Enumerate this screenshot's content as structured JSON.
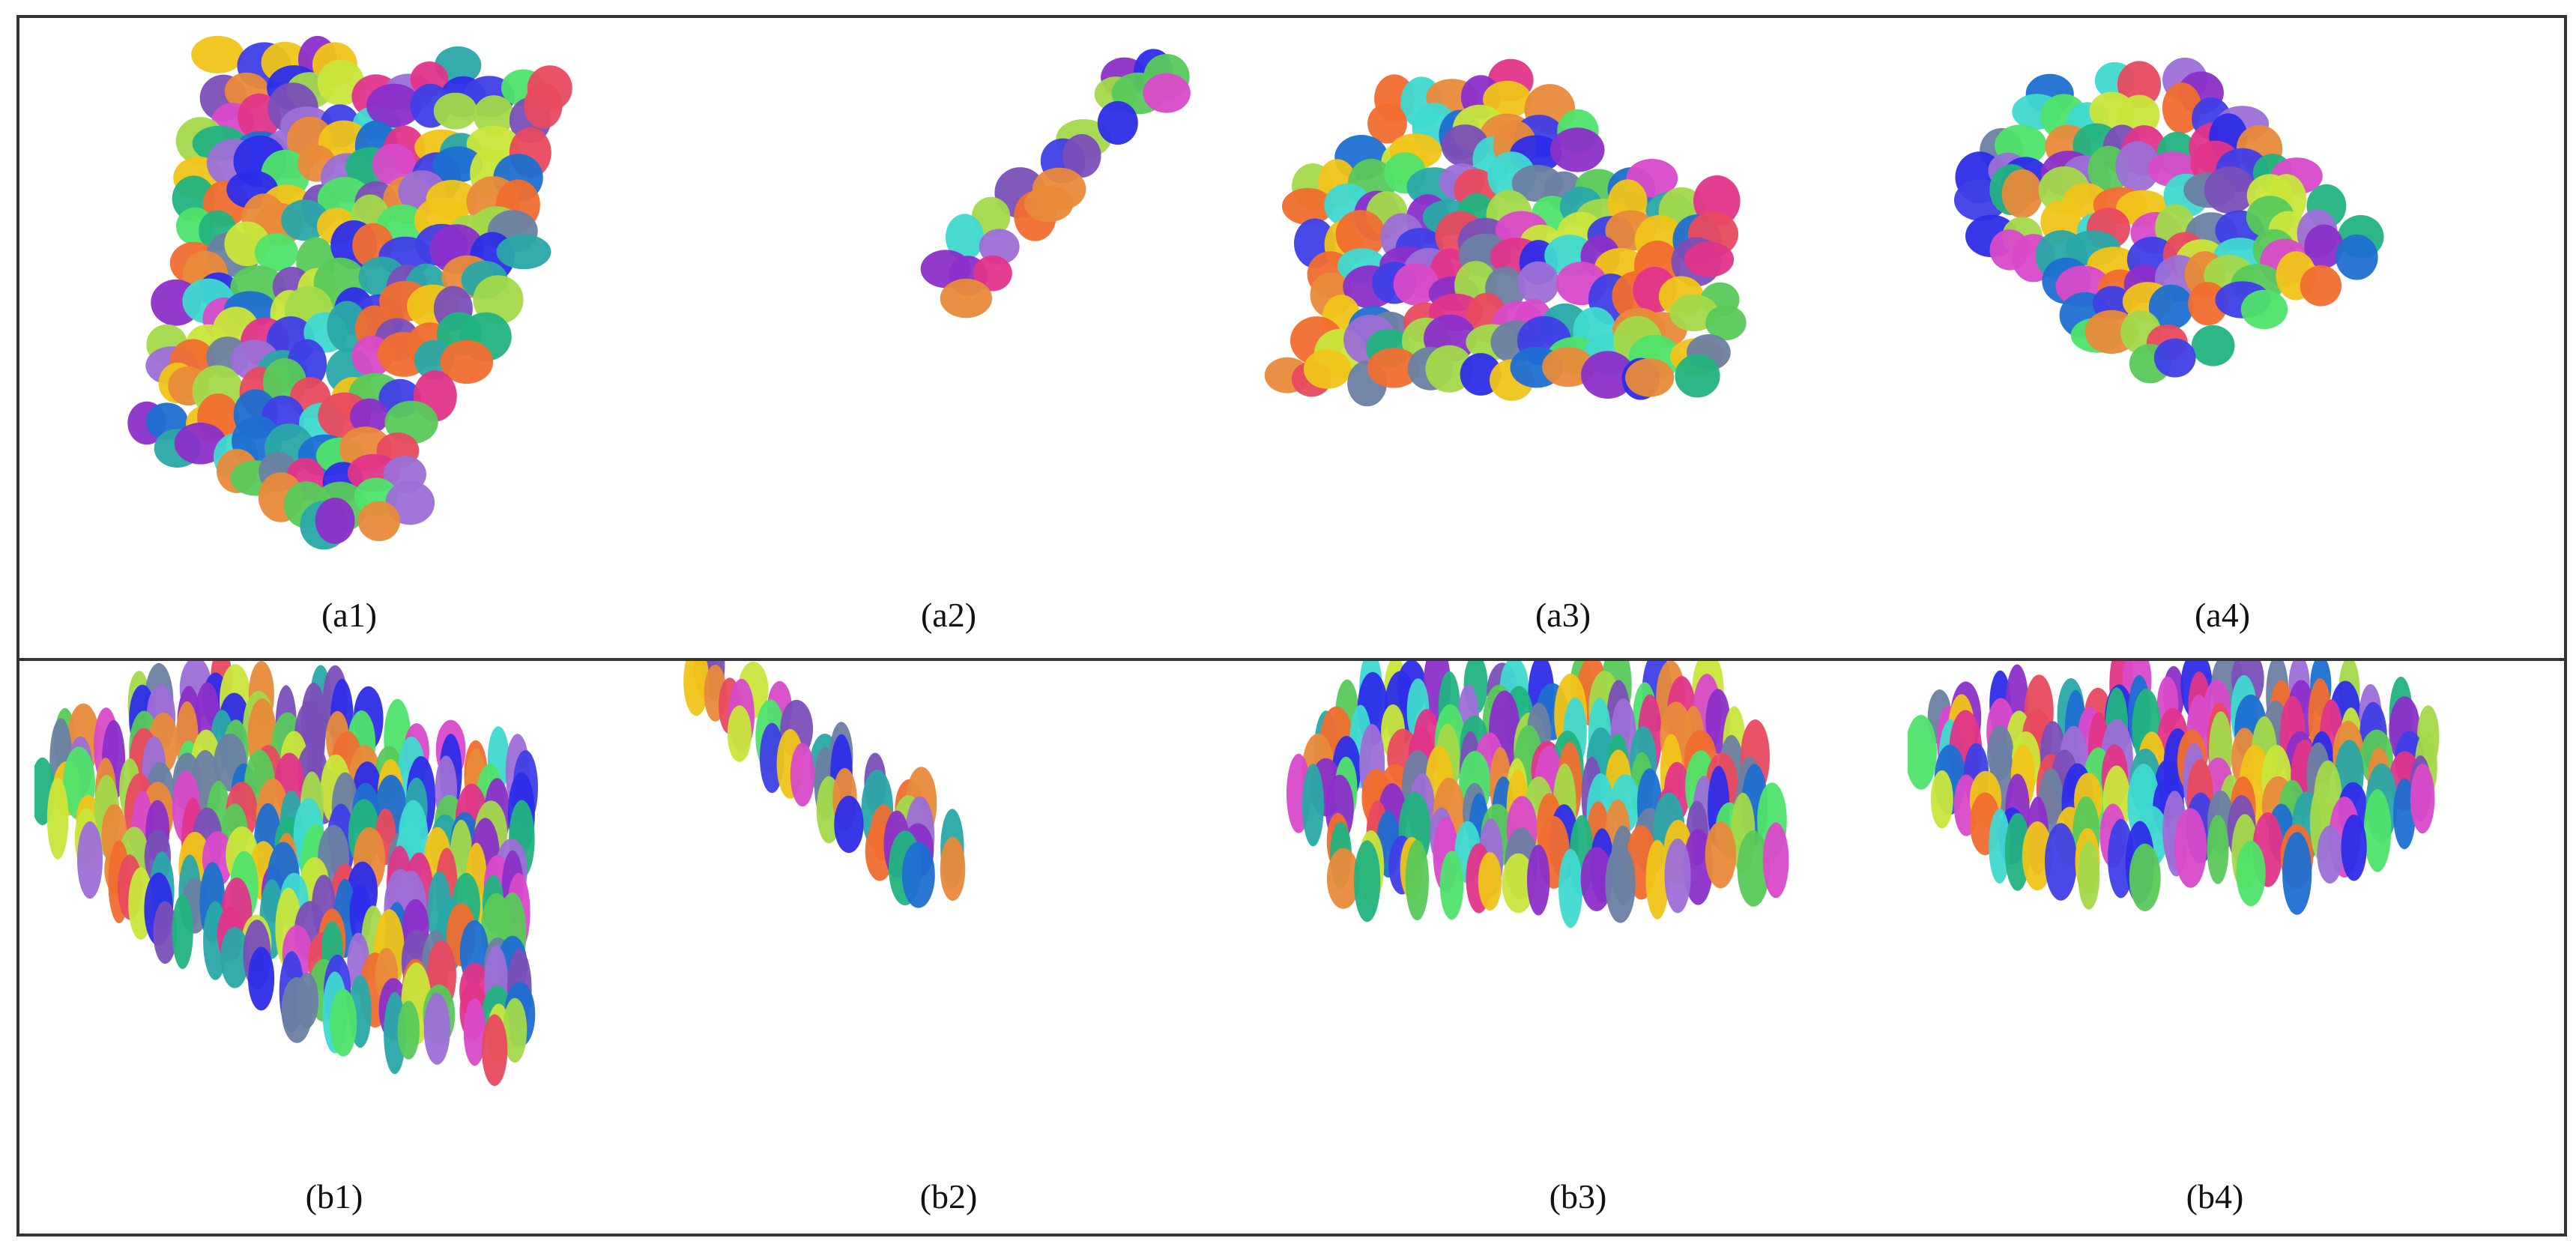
{
  "palette": [
    "#1f6fd1",
    "#e0358a",
    "#8b2fc9",
    "#3f3fe6",
    "#22b37f",
    "#f0c419",
    "#4fe36a",
    "#e88a3a",
    "#9c6fd6",
    "#c9e63b",
    "#2aa8a8",
    "#e84a5f",
    "#6b7fa3",
    "#a3d94a",
    "#d94ac9",
    "#3fd9d0",
    "#7a4fb8",
    "#f06e2f",
    "#2d2de8",
    "#58c95a"
  ],
  "panels": {
    "a1": {
      "caption": "(a1)",
      "seed": 11
    },
    "a2": {
      "caption": "(a2)",
      "seed": 23
    },
    "a3": {
      "caption": "(a3)",
      "seed": 37
    },
    "a4": {
      "caption": "(a4)",
      "seed": 53
    },
    "b1": {
      "caption": "(b1)",
      "seed": 61
    },
    "b2": {
      "caption": "(b2)",
      "seed": 79
    },
    "b3": {
      "caption": "(b3)",
      "seed": 97
    },
    "b4": {
      "caption": "(b4)",
      "seed": 113
    }
  }
}
